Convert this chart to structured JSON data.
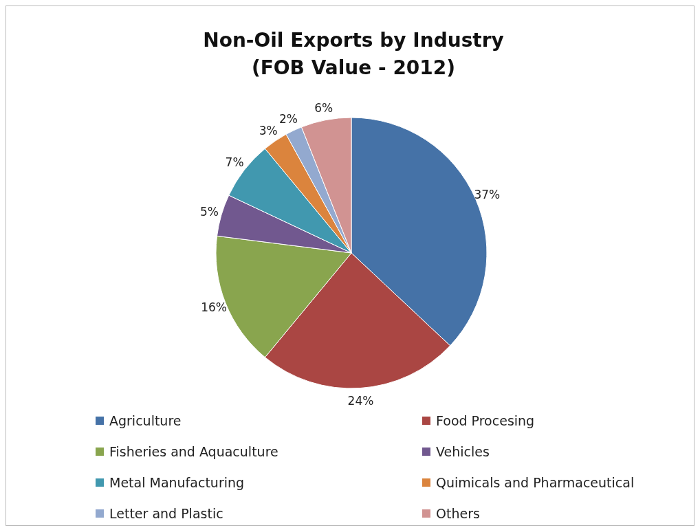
{
  "chart_data": {
    "type": "pie",
    "title": "Non-Oil Exports by Industry\n(FOB Value - 2012)",
    "categories": [
      "Agriculture",
      "Food Procesing",
      "Fisheries and Aquaculture",
      "Vehicles",
      "Metal Manufacturing",
      "Quimicals and Pharmaceutical",
      "Letter and Plastic",
      "Others"
    ],
    "values": [
      37,
      24,
      16,
      5,
      7,
      3,
      2,
      6
    ],
    "colors": [
      "#4572a7",
      "#aa4643",
      "#89a54e",
      "#71588f",
      "#4198af",
      "#db843d",
      "#93a9cf",
      "#d19392"
    ],
    "value_labels": [
      "37%",
      "24%",
      "16%",
      "5%",
      "7%",
      "3%",
      "2%",
      "6%"
    ],
    "legend": "bottom"
  }
}
